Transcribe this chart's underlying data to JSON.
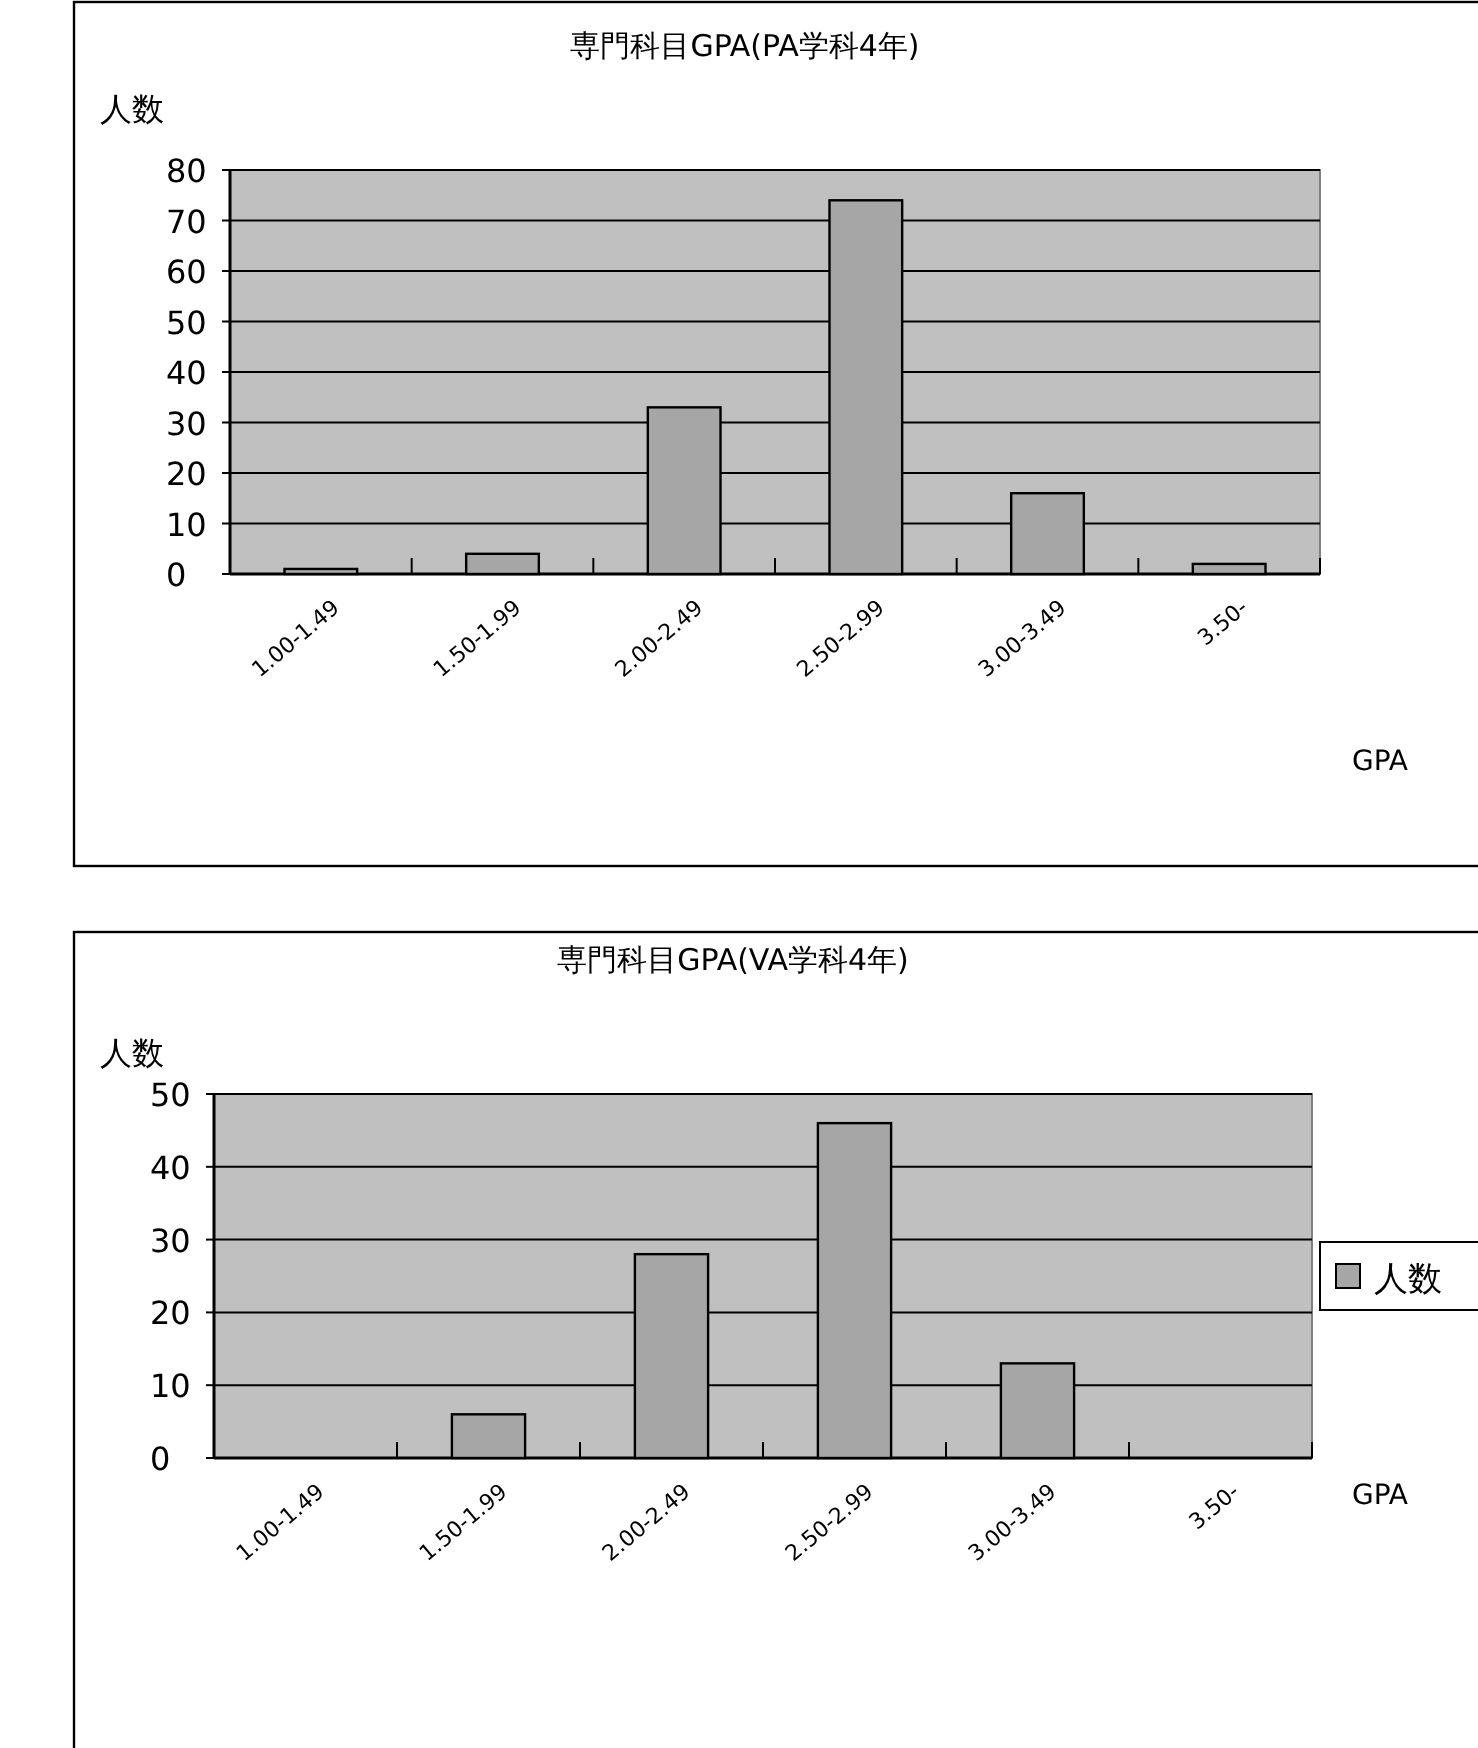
{
  "chart_data": [
    {
      "type": "bar",
      "title": "専門科目GPA(PA学科4年)",
      "ylabel": "人数",
      "xlabel": "GPA",
      "categories": [
        "1.00-1.49",
        "1.50-1.99",
        "2.00-2.49",
        "2.50-2.99",
        "3.00-3.49",
        "3.50-"
      ],
      "series": [
        {
          "color": "#a6a6a6",
          "values": [
            1,
            4,
            33,
            74,
            16,
            2
          ]
        }
      ],
      "ylim": [
        0,
        80
      ],
      "yticks": [
        0,
        10,
        20,
        30,
        40,
        50,
        60,
        70,
        80
      ],
      "grid": "y",
      "legend": false
    },
    {
      "type": "bar",
      "title": "専門科目GPA(VA学科4年)",
      "ylabel": "人数",
      "xlabel": "GPA",
      "categories": [
        "1.00-1.49",
        "1.50-1.99",
        "2.00-2.49",
        "2.50-2.99",
        "3.00-3.49",
        "3.50-"
      ],
      "series": [
        {
          "name": "人数",
          "color": "#a6a6a6",
          "values": [
            0,
            6,
            28,
            46,
            13,
            0
          ]
        }
      ],
      "ylim": [
        0,
        50
      ],
      "yticks": [
        0,
        10,
        20,
        30,
        40,
        50
      ],
      "grid": "y",
      "legend": "right"
    }
  ]
}
